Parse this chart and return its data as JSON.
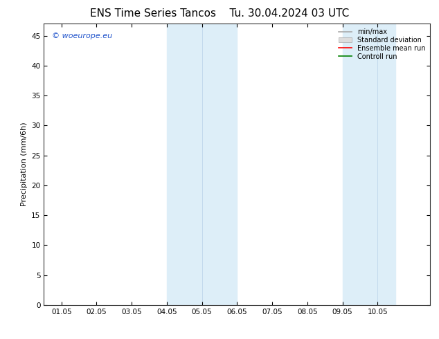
{
  "title_left": "ENS Time Series Tancos",
  "title_right": "Tu. 30.04.2024 03 UTC",
  "ylabel": "Precipitation (mm/6h)",
  "ylim": [
    0,
    47
  ],
  "yticks": [
    0,
    5,
    10,
    15,
    20,
    25,
    30,
    35,
    40,
    45
  ],
  "xlim": [
    -0.5,
    10.5
  ],
  "xtick_labels": [
    "01.05",
    "02.05",
    "03.05",
    "04.05",
    "05.05",
    "06.05",
    "07.05",
    "08.05",
    "09.05",
    "10.05"
  ],
  "xtick_positions": [
    0,
    1,
    2,
    3,
    4,
    5,
    6,
    7,
    8,
    9
  ],
  "shade_regions": [
    {
      "xmin": 3.0,
      "xmax": 4.0,
      "color": "#ddeef8"
    },
    {
      "xmin": 4.0,
      "xmax": 5.0,
      "color": "#ddeef8"
    },
    {
      "xmin": 8.0,
      "xmax": 9.0,
      "color": "#ddeef8"
    },
    {
      "xmin": 9.0,
      "xmax": 9.5,
      "color": "#ddeef8"
    }
  ],
  "legend_labels": [
    "min/max",
    "Standard deviation",
    "Ensemble mean run",
    "Controll run"
  ],
  "legend_colors": [
    "#aaaaaa",
    "#cccccc",
    "#ff0000",
    "#008000"
  ],
  "watermark": "© woeurope.eu",
  "bg_color": "#ffffff",
  "plot_bg_color": "#ffffff",
  "title_fontsize": 11,
  "tick_fontsize": 7.5,
  "ylabel_fontsize": 8
}
